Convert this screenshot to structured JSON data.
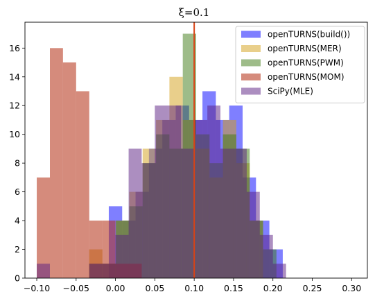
{
  "chart_data": {
    "type": "histogram",
    "title": "ξ=0.1",
    "xlabel": "",
    "ylabel": "",
    "xlim": [
      -0.115,
      0.32
    ],
    "ylim": [
      0,
      17.8
    ],
    "xticks": [
      -0.1,
      -0.05,
      0.0,
      0.05,
      0.1,
      0.15,
      0.2,
      0.25,
      0.3
    ],
    "xtick_labels": [
      "−0.10",
      "−0.05",
      "0.00",
      "0.05",
      "0.10",
      "0.15",
      "0.20",
      "0.25",
      "0.30"
    ],
    "yticks": [
      0,
      2,
      4,
      6,
      8,
      10,
      12,
      14,
      16
    ],
    "ytick_labels": [
      "0",
      "2",
      "4",
      "6",
      "8",
      "10",
      "12",
      "14",
      "16"
    ],
    "grid": false,
    "legend_position": "top-right",
    "reference_line": {
      "x": 0.1,
      "color": "#d84315"
    },
    "series": [
      {
        "name": "openTURNS(build())",
        "color": "#0000ff",
        "alpha": 0.5,
        "bin_edges": [
          -0.0085,
          0.0085,
          0.0255,
          0.0425,
          0.0595,
          0.0765,
          0.0935,
          0.1105,
          0.1275,
          0.1445,
          0.1615,
          0.1785,
          0.1955,
          0.2125
        ],
        "counts": [
          5,
          4,
          6,
          9,
          11,
          12,
          11,
          13,
          11,
          12,
          7,
          4,
          2
        ]
      },
      {
        "name": "openTURNS(MER)",
        "color": "#d4a017",
        "alpha": 0.5,
        "bin_edges": [
          -0.0335,
          -0.0165,
          0.0005,
          0.0175,
          0.0345,
          0.0515,
          0.0685,
          0.0855,
          0.1025,
          0.1195,
          0.1365,
          0.1535,
          0.1705,
          0.1875
        ],
        "counts": [
          2,
          1,
          4,
          6,
          9,
          11,
          14,
          11,
          9,
          7,
          11,
          8,
          4
        ]
      },
      {
        "name": "openTURNS(PWM)",
        "color": "#3d7a14",
        "alpha": 0.5,
        "bin_edges": [
          -0.0335,
          -0.0165,
          0.0005,
          0.0175,
          0.0345,
          0.0515,
          0.0685,
          0.0855,
          0.1025,
          0.1195,
          0.1365,
          0.1535,
          0.1705,
          0.1875,
          0.2045
        ],
        "counts": [
          1,
          1,
          4,
          5,
          8,
          10,
          9,
          17,
          10,
          8,
          10,
          9,
          4,
          2
        ]
      },
      {
        "name": "openTURNS(MOM)",
        "color": "#b22c10",
        "alpha": 0.55,
        "bin_edges": [
          -0.1,
          -0.0833,
          -0.0667,
          -0.05,
          -0.0333,
          -0.0167,
          0.0,
          0.0167,
          0.0333
        ],
        "counts": [
          7,
          16,
          15,
          13,
          4,
          4,
          1,
          1
        ]
      },
      {
        "name": "SciPy(MLE)",
        "color": "#5a1e82",
        "alpha": 0.5,
        "bin_edges": [
          -0.1,
          -0.0833,
          -0.0667,
          -0.05,
          -0.0333,
          -0.0167,
          0.0,
          0.0167,
          0.0333,
          0.05,
          0.0667,
          0.0833,
          0.1,
          0.1167,
          0.1333,
          0.15,
          0.1667,
          0.1833,
          0.2,
          0.2167
        ],
        "counts": [
          1,
          0,
          0,
          0,
          1,
          1,
          3,
          9,
          8,
          12,
          12,
          9,
          11,
          12,
          9,
          9,
          6,
          3,
          1
        ]
      }
    ]
  }
}
